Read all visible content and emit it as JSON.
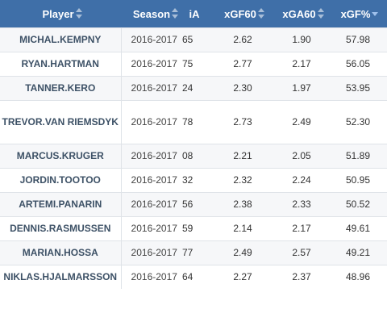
{
  "headers": {
    "player": "Player",
    "season": "Season",
    "clipped": "iA",
    "xgf60": "xGF60",
    "xga60": "xGA60",
    "xgfpct": "xGF%"
  },
  "rows": [
    {
      "player": "MICHAL.KEMPNY",
      "season": "2016-2017",
      "clipped": "65",
      "xgf60": "2.62",
      "xga60": "1.90",
      "xgfpct": "57.98"
    },
    {
      "player": "RYAN.HARTMAN",
      "season": "2016-2017",
      "clipped": "75",
      "xgf60": "2.77",
      "xga60": "2.17",
      "xgfpct": "56.05"
    },
    {
      "player": "TANNER.KERO",
      "season": "2016-2017",
      "clipped": "24",
      "xgf60": "2.30",
      "xga60": "1.97",
      "xgfpct": "53.95"
    },
    {
      "player": "TREVOR.VAN RIEMSDYK",
      "season": "2016-2017",
      "clipped": "78",
      "xgf60": "2.73",
      "xga60": "2.49",
      "xgfpct": "52.30"
    },
    {
      "player": "MARCUS.KRUGER",
      "season": "2016-2017",
      "clipped": "08",
      "xgf60": "2.21",
      "xga60": "2.05",
      "xgfpct": "51.89"
    },
    {
      "player": "JORDIN.TOOTOO",
      "season": "2016-2017",
      "clipped": "32",
      "xgf60": "2.32",
      "xga60": "2.24",
      "xgfpct": "50.95"
    },
    {
      "player": "ARTEMI.PANARIN",
      "season": "2016-2017",
      "clipped": "56",
      "xgf60": "2.38",
      "xga60": "2.33",
      "xgfpct": "50.52"
    },
    {
      "player": "DENNIS.RASMUSSEN",
      "season": "2016-2017",
      "clipped": "59",
      "xgf60": "2.14",
      "xga60": "2.17",
      "xgfpct": "49.61"
    },
    {
      "player": "MARIAN.HOSSA",
      "season": "2016-2017",
      "clipped": "77",
      "xgf60": "2.49",
      "xga60": "2.57",
      "xgfpct": "49.21"
    },
    {
      "player": "NIKLAS.HJALMARSSON",
      "season": "2016-2017",
      "clipped": "64",
      "xgf60": "2.27",
      "xga60": "2.37",
      "xgfpct": "48.96"
    }
  ]
}
